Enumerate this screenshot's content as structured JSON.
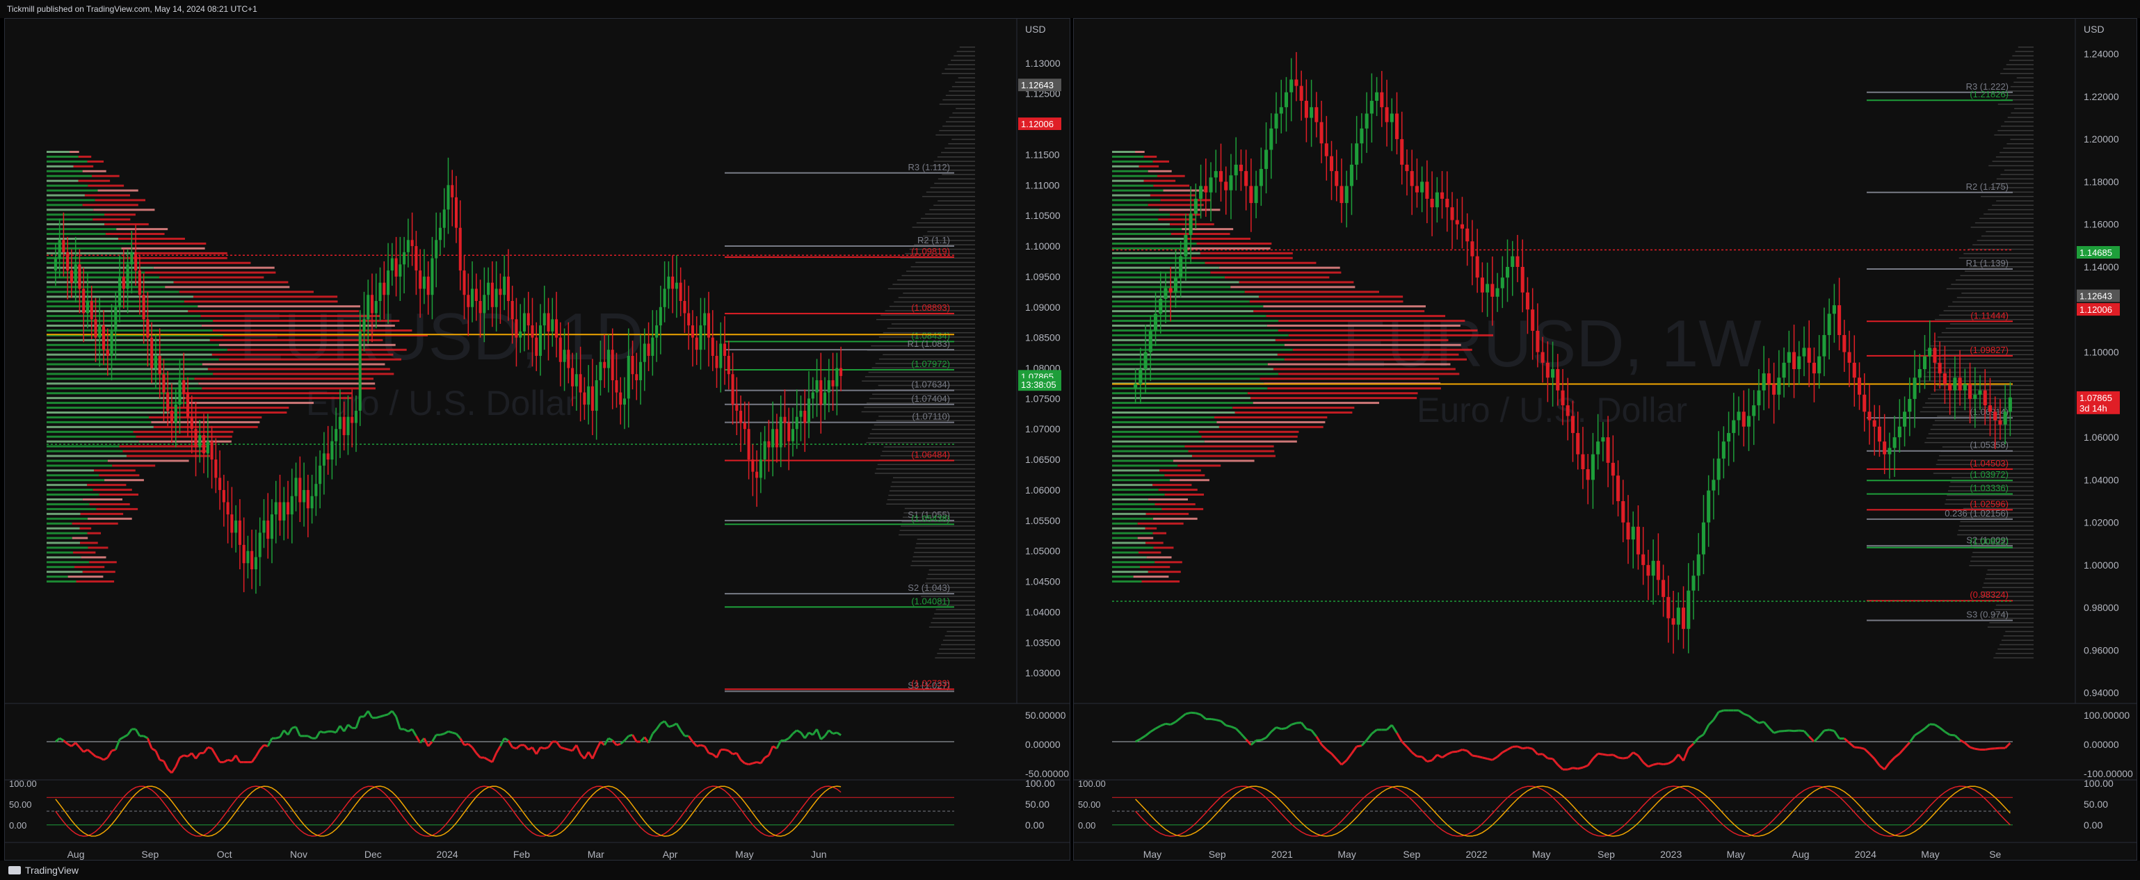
{
  "header": {
    "published": "Tickmill published on TradingView.com, May 14, 2024 08:21 UTC+1"
  },
  "footer": {
    "brand": "TradingView"
  },
  "colors": {
    "up": "#1e9e3a",
    "down": "#e01e26",
    "bg": "#0f0f0f",
    "grid": "#1a1a1a",
    "orange": "#f0a500",
    "magenta": "#d24bd9",
    "blue": "#5b8fe6"
  },
  "chart_data": [
    {
      "type": "candlestick",
      "watermark": {
        "symbol": "EURUSD, 1D",
        "name": "Euro / U.S. Dollar"
      },
      "currency": "USD",
      "ylim": [
        1.025,
        1.135
      ],
      "y_ticks": [
        "1.13000",
        "1.12500",
        "1.12000",
        "1.11500",
        "1.11000",
        "1.10500",
        "1.10000",
        "1.09500",
        "1.09000",
        "1.08500",
        "1.08000",
        "1.07500",
        "1.07000",
        "1.06500",
        "1.06000",
        "1.05500",
        "1.05000",
        "1.04500",
        "1.04000",
        "1.03500",
        "1.03000"
      ],
      "x_labels": [
        "Aug",
        "Sep",
        "Oct",
        "Nov",
        "Dec",
        "2024",
        "Feb",
        "Mar",
        "Apr",
        "May",
        "Jun"
      ],
      "price_badges": [
        {
          "label": "1.12643",
          "value": 1.12643,
          "color": "#555555"
        },
        {
          "label": "1.12006",
          "value": 1.12006,
          "color": "#e01e26"
        },
        {
          "label": "1.07865",
          "value": 1.07865,
          "color": "#1e9e3a"
        },
        {
          "label": "13:38:05",
          "value": 1.0773,
          "color": "#1e9e3a"
        }
      ],
      "level_labels": [
        {
          "text": "R3 (1.112)",
          "value": 1.112,
          "color": "#787b86"
        },
        {
          "text": "R2 (1.1)",
          "value": 1.1,
          "color": "#787b86"
        },
        {
          "text": "(1.09819)",
          "value": 1.09819,
          "color": "#e01e26"
        },
        {
          "text": "(1.08893)",
          "value": 1.08893,
          "color": "#e01e26"
        },
        {
          "text": "(1.08434)",
          "value": 1.08434,
          "color": "#1e9e3a"
        },
        {
          "text": "R1 (1.083)",
          "value": 1.083,
          "color": "#787b86"
        },
        {
          "text": "(1.07972)",
          "value": 1.07972,
          "color": "#1e9e3a"
        },
        {
          "text": "(1.07634)",
          "value": 1.07634,
          "color": "#787b86"
        },
        {
          "text": "(1.07404)",
          "value": 1.07404,
          "color": "#787b86"
        },
        {
          "text": "(1.07110)",
          "value": 1.0711,
          "color": "#787b86"
        },
        {
          "text": "(1.06484)",
          "value": 1.06484,
          "color": "#e01e26"
        },
        {
          "text": "S1 (1.055)",
          "value": 1.055,
          "color": "#787b86"
        },
        {
          "text": "(1.05438)",
          "value": 1.05438,
          "color": "#1e9e3a"
        },
        {
          "text": "S2 (1.043)",
          "value": 1.043,
          "color": "#787b86"
        },
        {
          "text": "(1.04081)",
          "value": 1.04081,
          "color": "#1e9e3a"
        },
        {
          "text": "S3 (1.027)",
          "value": 1.027,
          "color": "#787b86"
        },
        {
          "text": "(1.02733)",
          "value": 1.02733,
          "color": "#e01e26"
        }
      ],
      "series": [
        {
          "name": "Close",
          "values": [
            1.098,
            1.101,
            1.099,
            1.096,
            1.094,
            1.097,
            1.093,
            1.089,
            1.091,
            1.088,
            1.085,
            1.087,
            1.083,
            1.082,
            1.086,
            1.09,
            1.095,
            1.093,
            1.097,
            1.099,
            1.096,
            1.092,
            1.088,
            1.085,
            1.08,
            1.082,
            1.079,
            1.076,
            1.073,
            1.071,
            1.074,
            1.078,
            1.076,
            1.072,
            1.07,
            1.067,
            1.069,
            1.066,
            1.068,
            1.065,
            1.062,
            1.06,
            1.058,
            1.056,
            1.053,
            1.055,
            1.051,
            1.048,
            1.05,
            1.047,
            1.049,
            1.053,
            1.055,
            1.052,
            1.056,
            1.058,
            1.055,
            1.058,
            1.056,
            1.059,
            1.062,
            1.058,
            1.06,
            1.057,
            1.059,
            1.061,
            1.064,
            1.066,
            1.065,
            1.068,
            1.07,
            1.072,
            1.069,
            1.072,
            1.071,
            1.073,
            1.086,
            1.088,
            1.092,
            1.089,
            1.091,
            1.094,
            1.092,
            1.096,
            1.098,
            1.095,
            1.097,
            1.099,
            1.101,
            1.1,
            1.096,
            1.093,
            1.095,
            1.092,
            1.098,
            1.101,
            1.103,
            1.106,
            1.11,
            1.108,
            1.103,
            1.096,
            1.092,
            1.09,
            1.093,
            1.091,
            1.089,
            1.092,
            1.094,
            1.09,
            1.093,
            1.092,
            1.095,
            1.091,
            1.088,
            1.085,
            1.086,
            1.089,
            1.087,
            1.085,
            1.082,
            1.087,
            1.089,
            1.086,
            1.088,
            1.085,
            1.081,
            1.083,
            1.08,
            1.077,
            1.079,
            1.076,
            1.074,
            1.077,
            1.073,
            1.078,
            1.081,
            1.08,
            1.083,
            1.078,
            1.076,
            1.074,
            1.075,
            1.082,
            1.079,
            1.078,
            1.081,
            1.084,
            1.082,
            1.085,
            1.087,
            1.09,
            1.093,
            1.095,
            1.093,
            1.094,
            1.091,
            1.089,
            1.087,
            1.085,
            1.083,
            1.087,
            1.089,
            1.085,
            1.082,
            1.08,
            1.084,
            1.082,
            1.079,
            1.074,
            1.073,
            1.071,
            1.07,
            1.065,
            1.063,
            1.062,
            1.065,
            1.068,
            1.067,
            1.07,
            1.067,
            1.072,
            1.071,
            1.068,
            1.07,
            1.072,
            1.073,
            1.071,
            1.075,
            1.076,
            1.078,
            1.074,
            1.076,
            1.078,
            1.077,
            1.08,
            1.0787
          ]
        }
      ]
    },
    {
      "type": "candlestick",
      "watermark": {
        "symbol": "EURUSD, 1W",
        "name": "Euro / U.S. Dollar"
      },
      "currency": "USD",
      "ylim": [
        0.935,
        1.25
      ],
      "y_ticks": [
        "1.24000",
        "1.22000",
        "1.20000",
        "1.18000",
        "1.16000",
        "1.14000",
        "1.12000",
        "1.10000",
        "1.08000",
        "1.06000",
        "1.04000",
        "1.02000",
        "1.00000",
        "0.98000",
        "0.96000",
        "0.94000"
      ],
      "x_labels": [
        "May",
        "Sep",
        "2021",
        "May",
        "Sep",
        "2022",
        "May",
        "Sep",
        "2023",
        "May",
        "Aug",
        "2024",
        "May",
        "Se"
      ],
      "price_badges": [
        {
          "label": "1.14685",
          "value": 1.14685,
          "color": "#1e9e3a"
        },
        {
          "label": "1.12643",
          "value": 1.12643,
          "color": "#555555"
        },
        {
          "label": "1.12006",
          "value": 1.12006,
          "color": "#e01e26"
        },
        {
          "label": "1.07865",
          "value": 1.07865,
          "color": "#e01e26"
        },
        {
          "label": "3d 14h",
          "value": 1.0738,
          "color": "#e01e26"
        }
      ],
      "level_labels": [
        {
          "text": "R3 (1.222)",
          "value": 1.222,
          "color": "#787b86"
        },
        {
          "text": "(1.21826)",
          "value": 1.21826,
          "color": "#1e9e3a"
        },
        {
          "text": "R2 (1.175)",
          "value": 1.175,
          "color": "#787b86"
        },
        {
          "text": "R1 (1.139)",
          "value": 1.139,
          "color": "#787b86"
        },
        {
          "text": "(1.11444)",
          "value": 1.11444,
          "color": "#e01e26"
        },
        {
          "text": "(1.09827)",
          "value": 1.09827,
          "color": "#e01e26"
        },
        {
          "text": "(1.06914)",
          "value": 1.06914,
          "color": "#787b86"
        },
        {
          "text": "(1.05358)",
          "value": 1.05358,
          "color": "#787b86"
        },
        {
          "text": "(1.04503)",
          "value": 1.04503,
          "color": "#e01e26"
        },
        {
          "text": "(1.03972)",
          "value": 1.03972,
          "color": "#1e9e3a"
        },
        {
          "text": "(1.03336)",
          "value": 1.03336,
          "color": "#1e9e3a"
        },
        {
          "text": "(1.02596)",
          "value": 1.02596,
          "color": "#e01e26"
        },
        {
          "text": "S2 (1.009)",
          "value": 1.009,
          "color": "#787b86"
        },
        {
          "text": "(1.00822)",
          "value": 1.00822,
          "color": "#1e9e3a"
        },
        {
          "text": "(0.98324)",
          "value": 0.98324,
          "color": "#e01e26"
        },
        {
          "text": "S3 (0.974)",
          "value": 0.974,
          "color": "#787b86"
        },
        {
          "text": "0.236 (1.02156)",
          "value": 1.02156,
          "color": "#787b86"
        }
      ],
      "series": [
        {
          "name": "Close",
          "values": [
            1.085,
            1.092,
            1.1,
            1.11,
            1.118,
            1.125,
            1.13,
            1.128,
            1.135,
            1.145,
            1.155,
            1.165,
            1.172,
            1.178,
            1.175,
            1.182,
            1.185,
            1.18,
            1.176,
            1.183,
            1.188,
            1.185,
            1.178,
            1.17,
            1.178,
            1.186,
            1.195,
            1.205,
            1.212,
            1.215,
            1.222,
            1.228,
            1.225,
            1.218,
            1.21,
            1.215,
            1.208,
            1.198,
            1.192,
            1.185,
            1.178,
            1.17,
            1.178,
            1.188,
            1.198,
            1.205,
            1.212,
            1.218,
            1.222,
            1.215,
            1.208,
            1.212,
            1.2,
            1.188,
            1.185,
            1.178,
            1.175,
            1.18,
            1.172,
            1.168,
            1.175,
            1.172,
            1.168,
            1.162,
            1.16,
            1.158,
            1.152,
            1.145,
            1.135,
            1.128,
            1.132,
            1.126,
            1.13,
            1.135,
            1.14,
            1.145,
            1.14,
            1.128,
            1.12,
            1.11,
            1.1,
            1.095,
            1.088,
            1.092,
            1.082,
            1.075,
            1.07,
            1.062,
            1.052,
            1.045,
            1.04,
            1.052,
            1.058,
            1.06,
            1.048,
            1.042,
            1.03,
            1.02,
            1.012,
            1.018,
            1.005,
            1.0,
            0.995,
            1.002,
            0.993,
            0.985,
            0.975,
            0.972,
            0.98,
            0.97,
            0.988,
            0.995,
            1.005,
            1.02,
            1.035,
            1.04,
            1.05,
            1.058,
            1.062,
            1.068,
            1.072,
            1.065,
            1.07,
            1.075,
            1.082,
            1.09,
            1.085,
            1.08,
            1.088,
            1.095,
            1.1,
            1.092,
            1.098,
            1.102,
            1.095,
            1.09,
            1.098,
            1.108,
            1.118,
            1.122,
            1.108,
            1.1,
            1.095,
            1.088,
            1.08,
            1.072,
            1.068,
            1.065,
            1.058,
            1.052,
            1.055,
            1.06,
            1.065,
            1.072,
            1.078,
            1.088,
            1.092,
            1.098,
            1.102,
            1.095,
            1.09,
            1.085,
            1.082,
            1.088,
            1.082,
            1.085,
            1.078,
            1.08,
            1.082,
            1.075,
            1.072,
            1.068,
            1.066,
            1.072,
            1.0787
          ]
        }
      ]
    }
  ]
}
